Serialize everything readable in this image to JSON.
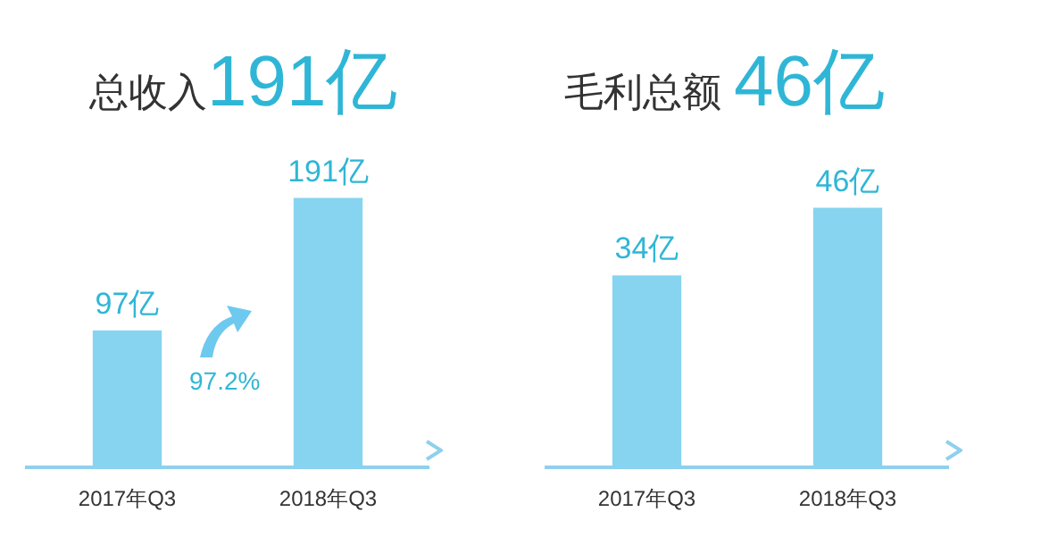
{
  "chart_data": [
    {
      "type": "bar",
      "title": "总收入191亿",
      "categories": [
        "2017年Q3",
        "2018年Q3"
      ],
      "values": [
        97,
        191
      ],
      "value_labels": [
        "97亿",
        "191亿"
      ],
      "color": "#86d4f0",
      "annotations": [
        "97.2%"
      ],
      "grid": false,
      "legend": false,
      "tick_labels": "x"
    },
    {
      "type": "bar",
      "title": "毛利总额 46亿",
      "categories": [
        "2017年Q3",
        "2018年Q3"
      ],
      "values": [
        34,
        46
      ],
      "value_labels": [
        "34亿",
        "46亿"
      ],
      "color": "#86d4f0",
      "grid": false,
      "legend": false,
      "tick_labels": "x"
    }
  ]
}
